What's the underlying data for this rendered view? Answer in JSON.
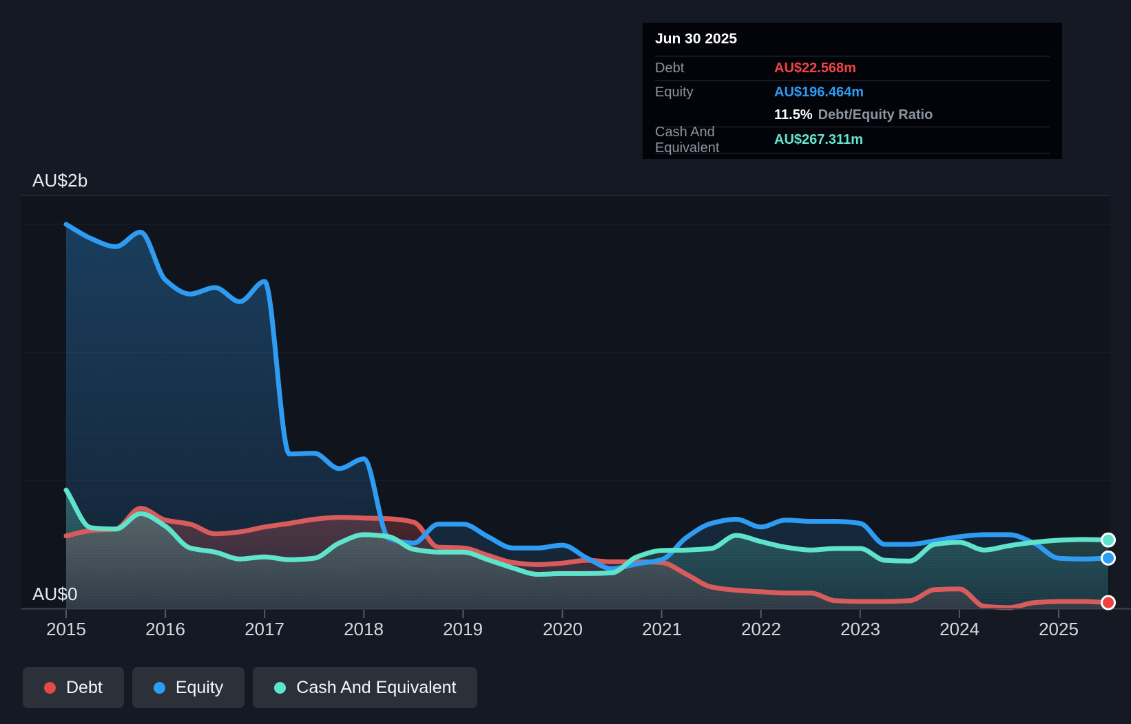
{
  "axis": {
    "y_top_label": "AU$2b",
    "y_zero_label": "AU$0",
    "years": [
      "2015",
      "2016",
      "2017",
      "2018",
      "2019",
      "2020",
      "2021",
      "2022",
      "2023",
      "2024",
      "2025"
    ]
  },
  "tooltip": {
    "date": "Jun 30 2025",
    "debt": {
      "label": "Debt",
      "value": "AU$22.568m"
    },
    "equity": {
      "label": "Equity",
      "value": "AU$196.464m"
    },
    "ratio": {
      "pct": "11.5%",
      "label": "Debt/Equity Ratio"
    },
    "cash": {
      "label": "Cash And Equivalent",
      "value": "AU$267.311m"
    }
  },
  "legend": {
    "items": [
      {
        "label": "Debt"
      },
      {
        "label": "Equity"
      },
      {
        "label": "Cash And Equivalent"
      }
    ]
  },
  "colors": {
    "debt": "#d85c5c",
    "equity": "#2e9cf2",
    "cash": "#5fe4cb",
    "debt_marker": "#ef4040",
    "debt_tooltip": "#f04545",
    "equity_tooltip": "#2e9cf2",
    "cash_tooltip": "#63e8d0",
    "legend_debt_dot": "#e14b47",
    "legend_equity_dot": "#2e9cf2",
    "legend_cash_dot": "#5fe4cb",
    "page_bg": "#151923",
    "plot_bg": "#10141d",
    "tooltip_bg": "#020409"
  },
  "chart_data": {
    "type": "area",
    "title": "Debt to Equity History and Analysis",
    "unit": "AU$ millions",
    "x_unit": "year (quarterly samples)",
    "x_range": [
      2015,
      2025.5
    ],
    "ylim": [
      0,
      2000
    ],
    "grid": true,
    "gridline_values_m": [
      500,
      1000,
      1500
    ],
    "legend_position": "bottom-left",
    "x": [
      2015.0,
      2015.25,
      2015.5,
      2015.75,
      2016.0,
      2016.25,
      2016.5,
      2016.75,
      2017.0,
      2017.25,
      2017.5,
      2017.75,
      2018.0,
      2018.25,
      2018.5,
      2018.75,
      2019.0,
      2019.25,
      2019.5,
      2019.75,
      2020.0,
      2020.25,
      2020.5,
      2020.75,
      2021.0,
      2021.25,
      2021.5,
      2021.75,
      2022.0,
      2022.25,
      2022.5,
      2022.75,
      2023.0,
      2023.25,
      2023.5,
      2023.75,
      2024.0,
      2024.25,
      2024.5,
      2024.75,
      2025.0,
      2025.25,
      2025.5
    ],
    "series": [
      {
        "key": "debt",
        "name": "Debt",
        "values": [
          283,
          304,
          310,
          391,
          345,
          329,
          291,
          299,
          318,
          332,
          348,
          356,
          353,
          350,
          337,
          239,
          236,
          207,
          179,
          171,
          177,
          188,
          182,
          182,
          179,
          133,
          84,
          71,
          65,
          60,
          60,
          30,
          27,
          27,
          30,
          73,
          76,
          8,
          3,
          22,
          27,
          27,
          22.568
        ]
      },
      {
        "key": "equity",
        "name": "Equity",
        "values": [
          1500,
          1445,
          1413,
          1470,
          1283,
          1228,
          1253,
          1198,
          1277,
          603,
          606,
          546,
          584,
          274,
          255,
          329,
          329,
          280,
          236,
          236,
          247,
          196,
          155,
          174,
          190,
          277,
          332,
          348,
          318,
          345,
          340,
          340,
          332,
          250,
          250,
          264,
          280,
          288,
          288,
          255,
          196,
          193,
          196.464
        ]
      },
      {
        "key": "cash",
        "name": "Cash And Equivalent",
        "values": [
          462,
          315,
          310,
          370,
          321,
          236,
          220,
          193,
          201,
          190,
          196,
          255,
          288,
          280,
          231,
          220,
          220,
          190,
          158,
          133,
          136,
          136,
          139,
          201,
          226,
          228,
          234,
          285,
          261,
          239,
          228,
          234,
          234,
          188,
          185,
          250,
          258,
          228,
          245,
          258,
          266,
          269,
          267.311
        ]
      }
    ],
    "end_point_labels": {
      "date": "Jun 30 2025",
      "debt_m": 22.568,
      "equity_m": 196.464,
      "cash_m": 267.311,
      "debt_equity_ratio_pct": 11.5
    }
  }
}
